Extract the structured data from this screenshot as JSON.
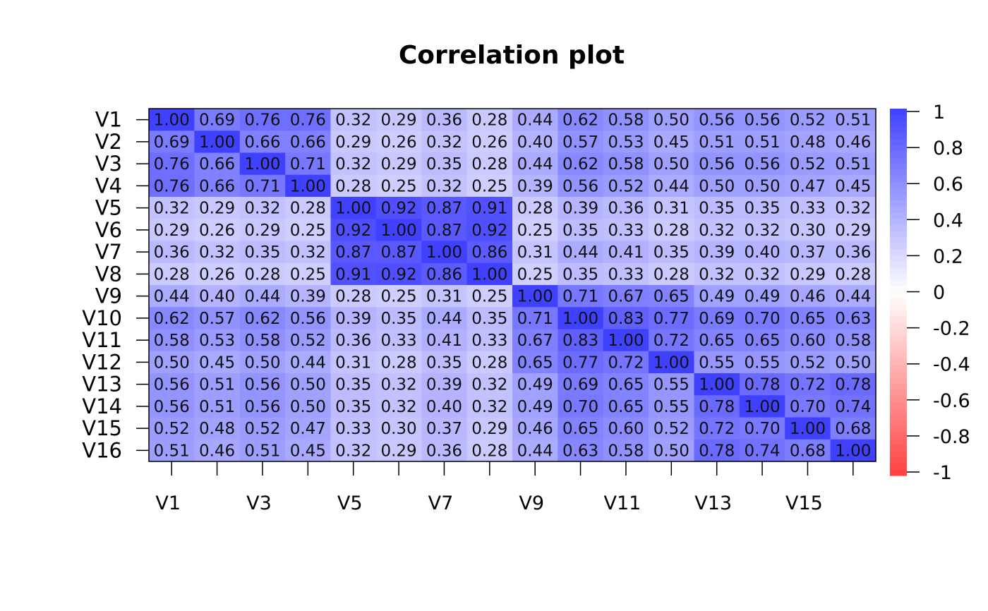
{
  "chart_data": {
    "type": "heatmap",
    "title": "Correlation plot",
    "rows": [
      "V1",
      "V2",
      "V3",
      "V4",
      "V5",
      "V6",
      "V7",
      "V8",
      "V9",
      "V10",
      "V11",
      "V12",
      "V13",
      "V14",
      "V15",
      "V16"
    ],
    "x_tick_labels": [
      "V1",
      "V3",
      "V5",
      "V7",
      "V9",
      "V11",
      "V13",
      "V15"
    ],
    "values": [
      [
        1.0,
        0.69,
        0.76,
        0.76,
        0.32,
        0.29,
        0.36,
        0.28,
        0.44,
        0.62,
        0.58,
        0.5,
        0.56,
        0.56,
        0.52,
        0.51
      ],
      [
        0.69,
        1.0,
        0.66,
        0.66,
        0.29,
        0.26,
        0.32,
        0.26,
        0.4,
        0.57,
        0.53,
        0.45,
        0.51,
        0.51,
        0.48,
        0.46
      ],
      [
        0.76,
        0.66,
        1.0,
        0.71,
        0.32,
        0.29,
        0.35,
        0.28,
        0.44,
        0.62,
        0.58,
        0.5,
        0.56,
        0.56,
        0.52,
        0.51
      ],
      [
        0.76,
        0.66,
        0.71,
        1.0,
        0.28,
        0.25,
        0.32,
        0.25,
        0.39,
        0.56,
        0.52,
        0.44,
        0.5,
        0.5,
        0.47,
        0.45
      ],
      [
        0.32,
        0.29,
        0.32,
        0.28,
        1.0,
        0.92,
        0.87,
        0.91,
        0.28,
        0.39,
        0.36,
        0.31,
        0.35,
        0.35,
        0.33,
        0.32
      ],
      [
        0.29,
        0.26,
        0.29,
        0.25,
        0.92,
        1.0,
        0.87,
        0.92,
        0.25,
        0.35,
        0.33,
        0.28,
        0.32,
        0.32,
        0.3,
        0.29
      ],
      [
        0.36,
        0.32,
        0.35,
        0.32,
        0.87,
        0.87,
        1.0,
        0.86,
        0.31,
        0.44,
        0.41,
        0.35,
        0.39,
        0.4,
        0.37,
        0.36
      ],
      [
        0.28,
        0.26,
        0.28,
        0.25,
        0.91,
        0.92,
        0.86,
        1.0,
        0.25,
        0.35,
        0.33,
        0.28,
        0.32,
        0.32,
        0.29,
        0.28
      ],
      [
        0.44,
        0.4,
        0.44,
        0.39,
        0.28,
        0.25,
        0.31,
        0.25,
        1.0,
        0.71,
        0.67,
        0.65,
        0.49,
        0.49,
        0.46,
        0.44
      ],
      [
        0.62,
        0.57,
        0.62,
        0.56,
        0.39,
        0.35,
        0.44,
        0.35,
        0.71,
        1.0,
        0.83,
        0.77,
        0.69,
        0.7,
        0.65,
        0.63
      ],
      [
        0.58,
        0.53,
        0.58,
        0.52,
        0.36,
        0.33,
        0.41,
        0.33,
        0.67,
        0.83,
        1.0,
        0.72,
        0.65,
        0.65,
        0.6,
        0.58
      ],
      [
        0.5,
        0.45,
        0.5,
        0.44,
        0.31,
        0.28,
        0.35,
        0.28,
        0.65,
        0.77,
        0.72,
        1.0,
        0.55,
        0.55,
        0.52,
        0.5
      ],
      [
        0.56,
        0.51,
        0.56,
        0.5,
        0.35,
        0.32,
        0.39,
        0.32,
        0.49,
        0.69,
        0.65,
        0.55,
        1.0,
        0.78,
        0.72,
        0.78
      ],
      [
        0.56,
        0.51,
        0.56,
        0.5,
        0.35,
        0.32,
        0.4,
        0.32,
        0.49,
        0.7,
        0.65,
        0.55,
        0.78,
        1.0,
        0.7,
        0.74
      ],
      [
        0.52,
        0.48,
        0.52,
        0.47,
        0.33,
        0.3,
        0.37,
        0.29,
        0.46,
        0.65,
        0.6,
        0.52,
        0.72,
        0.7,
        1.0,
        0.68
      ],
      [
        0.51,
        0.46,
        0.51,
        0.45,
        0.32,
        0.29,
        0.36,
        0.28,
        0.44,
        0.63,
        0.58,
        0.5,
        0.78,
        0.74,
        0.68,
        1.0
      ]
    ],
    "color_scale": {
      "min": -1,
      "max": 1,
      "low_color": "#ff4040",
      "mid_color": "#ffffff",
      "high_color": "#4040ff",
      "ticks": [
        "1",
        "0.8",
        "0.6",
        "0.4",
        "0.2",
        "0",
        "-0.2",
        "-0.4",
        "-0.6",
        "-0.8",
        "-1"
      ]
    },
    "legend_placement": "right"
  }
}
